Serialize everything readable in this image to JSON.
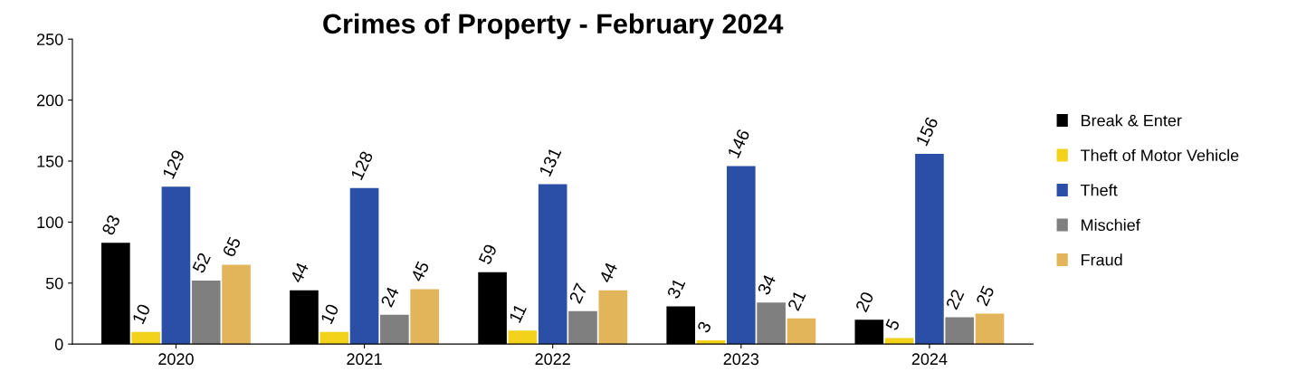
{
  "chart_data": {
    "type": "bar",
    "title": "Crimes of Property - February 2024",
    "categories": [
      "2020",
      "2021",
      "2022",
      "2023",
      "2024"
    ],
    "series": [
      {
        "name": "Break & Enter",
        "color": "#000000",
        "values": [
          83,
          44,
          59,
          31,
          20
        ]
      },
      {
        "name": "Theft of Motor Vehicle",
        "color": "#f2d21b",
        "values": [
          10,
          10,
          11,
          3,
          5
        ]
      },
      {
        "name": "Theft",
        "color": "#2b4fa6",
        "values": [
          129,
          128,
          131,
          146,
          156
        ]
      },
      {
        "name": "Mischief",
        "color": "#7f7f7f",
        "values": [
          52,
          24,
          27,
          34,
          22
        ]
      },
      {
        "name": "Fraud",
        "color": "#e2b55a",
        "values": [
          65,
          45,
          44,
          21,
          25
        ]
      }
    ],
    "ylim": [
      0,
      250
    ],
    "yticks": [
      0,
      50,
      100,
      150,
      200,
      250
    ],
    "grid": false,
    "legend": "right",
    "data_labels": true
  }
}
